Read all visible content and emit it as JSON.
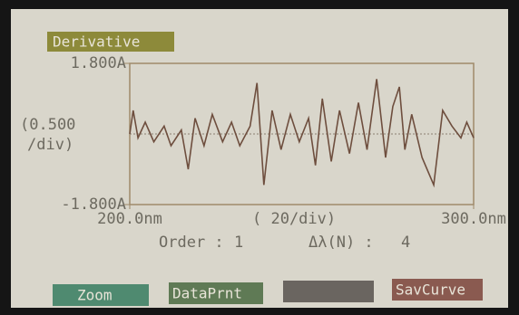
{
  "chart_data": {
    "type": "line",
    "title": "Derivative",
    "y_label_lines": [
      "(0.500",
      "/div)"
    ],
    "x_label": "( 20/div)",
    "x": [
      200,
      201,
      202.4,
      204.5,
      207,
      210,
      212,
      215,
      217,
      219,
      221.6,
      224,
      227,
      229.6,
      232,
      235,
      237,
      239,
      241.4,
      244,
      246.7,
      249.3,
      252,
      254,
      256,
      258.6,
      261,
      263.9,
      266.5,
      269,
      271.8,
      274.4,
      276.5,
      278.4,
      280,
      282,
      285,
      288.4,
      291,
      293.7,
      296.3,
      298,
      300
    ],
    "series": [
      {
        "color": "#6e4e3e",
        "values": [
          0,
          0.6,
          -0.1,
          0.3,
          -0.2,
          0.2,
          -0.3,
          0.1,
          -0.9,
          0.4,
          -0.3,
          0.5,
          -0.2,
          0.3,
          -0.3,
          0.2,
          1.3,
          -1.3,
          0.6,
          -0.4,
          0.5,
          -0.2,
          0.4,
          -0.8,
          0.9,
          -0.7,
          0.6,
          -0.5,
          0.8,
          -0.4,
          1.4,
          -0.6,
          0.7,
          1.2,
          -0.4,
          0.5,
          -0.6,
          -1.3,
          0.6,
          0.2,
          -0.1,
          0.3,
          -0.1
        ]
      }
    ],
    "xlim": [
      200,
      300
    ],
    "ylim": [
      -1.8,
      1.8
    ],
    "xticks": [
      {
        "value": 200,
        "label": "200.0nm"
      },
      {
        "value": 300,
        "label": "300.0nm"
      }
    ],
    "yticks": [
      {
        "value": -1.8,
        "label": "-1.800A"
      },
      {
        "value": 1.8,
        "label": "1.800A"
      }
    ]
  },
  "status": {
    "order_label": "Order :",
    "order_value": 1,
    "lambda_label": "Δλ(N) :",
    "lambda_value": 4
  },
  "buttons": [
    "Zoom",
    "DataPrnt",
    "SavCurve"
  ]
}
